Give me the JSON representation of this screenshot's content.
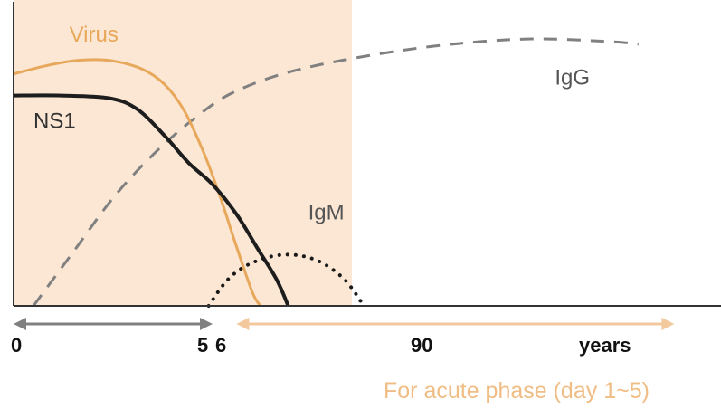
{
  "colors": {
    "shade": "#fbe7d3",
    "virus": "#e8a85c",
    "ns1": "#1d1d1d",
    "igg": "#808080",
    "igm": "#1a1a1a",
    "axis": "#333333",
    "left_arrow": "#808080",
    "right_arrow": "#f2c89c",
    "caption": "#f0bd85"
  },
  "chart_data": {
    "type": "line",
    "title": "",
    "xlabel": "",
    "ylabel": "",
    "grid": false,
    "shaded_region": {
      "x_from": 0,
      "x_to": 8.5
    },
    "x_ticks": [
      "0",
      "5",
      "6",
      "90",
      "years"
    ],
    "series": [
      {
        "name": "Virus",
        "style": "solid",
        "color": "#e8a85c",
        "points": [
          [
            0,
            0.86
          ],
          [
            0.8,
            0.89
          ],
          [
            1.6,
            0.91
          ],
          [
            2.4,
            0.91
          ],
          [
            3.2,
            0.88
          ],
          [
            3.8,
            0.82
          ],
          [
            4.3,
            0.72
          ],
          [
            4.8,
            0.56
          ],
          [
            5.2,
            0.4
          ],
          [
            5.6,
            0.22
          ],
          [
            6.0,
            0.05
          ],
          [
            6.2,
            0.0
          ]
        ]
      },
      {
        "name": "NS1",
        "style": "solid",
        "color": "#1d1d1d",
        "points": [
          [
            0,
            0.78
          ],
          [
            1.2,
            0.78
          ],
          [
            2.4,
            0.77
          ],
          [
            3.1,
            0.73
          ],
          [
            3.8,
            0.63
          ],
          [
            4.4,
            0.53
          ],
          [
            5.0,
            0.45
          ],
          [
            5.6,
            0.34
          ],
          [
            6.1,
            0.22
          ],
          [
            6.6,
            0.1
          ],
          [
            6.9,
            0.0
          ]
        ]
      },
      {
        "name": "IgG",
        "style": "dashed",
        "color": "#808080",
        "points": [
          [
            0.5,
            0.0
          ],
          [
            1.5,
            0.2
          ],
          [
            2.5,
            0.4
          ],
          [
            3.5,
            0.56
          ],
          [
            4.5,
            0.69
          ],
          [
            5.5,
            0.79
          ],
          [
            7.0,
            0.87
          ],
          [
            9.0,
            0.93
          ],
          [
            11.0,
            0.97
          ],
          [
            13.0,
            0.99
          ],
          [
            15.0,
            0.98
          ],
          [
            15.7,
            0.97
          ]
        ]
      },
      {
        "name": "IgM",
        "style": "dotted",
        "color": "#1a1a1a",
        "points": [
          [
            4.9,
            0.0
          ],
          [
            5.4,
            0.1
          ],
          [
            6.0,
            0.16
          ],
          [
            6.8,
            0.19
          ],
          [
            7.6,
            0.17
          ],
          [
            8.3,
            0.1
          ],
          [
            8.8,
            0.0
          ]
        ]
      }
    ],
    "series_labels": [
      {
        "text": "Virus",
        "x": 1.4,
        "y": 0.98
      },
      {
        "text": "NS1",
        "x": 0.5,
        "y": 0.66
      },
      {
        "text": "IgG",
        "x": 13.6,
        "y": 0.82
      },
      {
        "text": "IgM",
        "x": 7.4,
        "y": 0.32
      }
    ],
    "arrows": [
      {
        "from": 0,
        "to": 5,
        "direction": "left-to-right",
        "color": "#808080"
      },
      {
        "from": 5.6,
        "to": 16.6,
        "direction": "both",
        "color": "#f2c89c"
      }
    ]
  },
  "caption": "For acute phase (day 1~5)"
}
